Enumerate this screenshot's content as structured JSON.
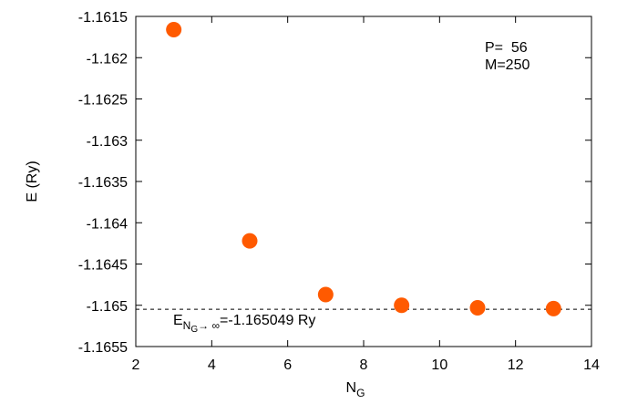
{
  "chart_data": {
    "type": "scatter",
    "xlabel": "N",
    "xlabel_sub": "G",
    "ylabel": "E (Ry)",
    "xlim": [
      2,
      14
    ],
    "ylim": [
      -1.1655,
      -1.1615
    ],
    "x_ticks": [
      "2",
      "4",
      "6",
      "8",
      "10",
      "12",
      "14"
    ],
    "y_ticks": [
      "-1.1615",
      "-1.162",
      "-1.1625",
      "-1.163",
      "-1.1635",
      "-1.164",
      "-1.1645",
      "-1.165",
      "-1.1655"
    ],
    "grid": false,
    "series": [
      {
        "color": "#ff5a00",
        "x": [
          3,
          5,
          7,
          9,
          11,
          13
        ],
        "y": [
          -1.16166,
          -1.16422,
          -1.16487,
          -1.165,
          -1.16503,
          -1.16504
        ]
      }
    ],
    "reference_line": {
      "y": -1.165049,
      "style": "dashed",
      "label_prefix": "E",
      "label_sub": "N",
      "label_subsub": "G",
      "label_sub_suffix": "→ ∞",
      "label_suffix": "=-1.165049 Ry"
    },
    "annotations": {
      "line1": "P=  56",
      "line2": "M=250"
    }
  }
}
